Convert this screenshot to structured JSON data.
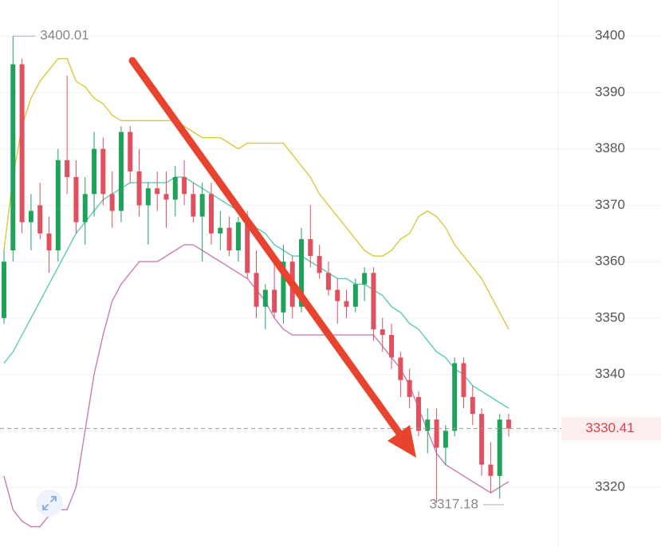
{
  "chart_data": {
    "type": "candlestick",
    "ylim": [
      3309.4,
      3406.4
    ],
    "yticks": [
      3320,
      3330,
      3340,
      3350,
      3360,
      3370,
      3380,
      3390,
      3400
    ],
    "grid": true,
    "up_color": "#1fa35a",
    "down_color": "#e0505e",
    "open": [
      3350,
      3362,
      3395,
      3367,
      3370,
      3365,
      3362,
      3378,
      3375,
      3367,
      3372,
      3380,
      3372,
      3369,
      3383,
      3376,
      3370,
      3373,
      3372,
      3371,
      3375,
      3372,
      3368,
      3372,
      3365,
      3366,
      3362,
      3367,
      3358,
      3352,
      3355,
      3351,
      3360,
      3352,
      3364,
      3361,
      3358,
      3355,
      3353,
      3352,
      3356,
      3358,
      3348,
      3347,
      3343,
      3339,
      3336,
      3330,
      3332,
      3327,
      3330,
      3342,
      3336,
      3333,
      3324,
      3322,
      3332
    ],
    "high": [
      3362,
      3400.01,
      3396,
      3372,
      3374,
      3368,
      3380,
      3393,
      3378,
      3375,
      3383,
      3382,
      3376,
      3384,
      3384,
      3380,
      3374,
      3376,
      3376,
      3377,
      3378,
      3374,
      3374,
      3374,
      3369,
      3368,
      3368,
      3369,
      3362,
      3356,
      3360,
      3363,
      3361,
      3366,
      3370,
      3363,
      3360,
      3357,
      3355,
      3357,
      3359,
      3359,
      3350,
      3349,
      3344,
      3341,
      3337,
      3334,
      3334,
      3331,
      3343,
      3343,
      3338,
      3334,
      3328,
      3333,
      3333
    ],
    "low": [
      3349,
      3360,
      3365,
      3362,
      3364,
      3358,
      3360,
      3372,
      3365,
      3363,
      3368,
      3370,
      3366,
      3367,
      3374,
      3368,
      3363,
      3369,
      3366,
      3368,
      3370,
      3367,
      3360,
      3363,
      3362,
      3361,
      3360,
      3357,
      3350,
      3348,
      3350,
      3349,
      3350,
      3351,
      3359,
      3357,
      3354,
      3349,
      3350,
      3351,
      3353,
      3346,
      3344,
      3341,
      3336,
      3334,
      3329,
      3326,
      3317.18,
      3324,
      3329,
      3334,
      3331,
      3322,
      3319,
      3318,
      3329
    ],
    "close": [
      3360,
      3395,
      3367,
      3369,
      3365,
      3362,
      3378,
      3375,
      3367,
      3372,
      3380,
      3372,
      3369,
      3383,
      3376,
      3370,
      3373,
      3372,
      3371,
      3375,
      3372,
      3368,
      3372,
      3365,
      3366,
      3362,
      3367,
      3358,
      3352,
      3355,
      3351,
      3360,
      3352,
      3364,
      3361,
      3358,
      3355,
      3353,
      3352,
      3356,
      3358,
      3348,
      3347,
      3343,
      3339,
      3336,
      3330,
      3332,
      3327,
      3330,
      3342,
      3336,
      3333,
      3324,
      3322,
      3332,
      3330.41
    ],
    "lines": [
      {
        "color": "#d8c93c",
        "values": [
          3362,
          3375,
          3384,
          3389,
          3392,
          3394,
          3396,
          3396,
          3392,
          3391,
          3389,
          3388,
          3386,
          3385,
          3385,
          3385,
          3385,
          3385,
          3385,
          3385,
          3384,
          3383,
          3382,
          3382,
          3382,
          3381,
          3380,
          3381,
          3381,
          3381,
          3381,
          3381,
          3379,
          3377,
          3375,
          3372,
          3370,
          3368,
          3366,
          3364,
          3362,
          3361,
          3361,
          3362,
          3364,
          3365,
          3368,
          3369,
          3368,
          3366,
          3363,
          3361,
          3359,
          3357,
          3354,
          3351,
          3348
        ]
      },
      {
        "color": "#5ccab6",
        "values": [
          3342,
          3344,
          3347,
          3350,
          3353,
          3356,
          3359,
          3362,
          3365,
          3367,
          3369,
          3371,
          3372,
          3373,
          3374,
          3374,
          3374,
          3374,
          3374,
          3375,
          3375,
          3374,
          3373,
          3372,
          3371,
          3370,
          3369,
          3368,
          3366,
          3365,
          3363,
          3362,
          3361,
          3361,
          3360,
          3359,
          3358,
          3357,
          3357,
          3356,
          3356,
          3355,
          3354,
          3352,
          3351,
          3349,
          3348,
          3346,
          3344,
          3343,
          3341,
          3340,
          3338,
          3337,
          3336,
          3335,
          3334
        ]
      },
      {
        "color": "#c97db3",
        "values": [
          3322,
          3316,
          3314,
          3313,
          3313,
          3315,
          3316,
          3316,
          3320,
          3330,
          3340,
          3347,
          3353,
          3356,
          3358,
          3360,
          3360,
          3360,
          3361,
          3362,
          3363,
          3363,
          3362,
          3361,
          3360,
          3359,
          3358,
          3357,
          3355,
          3353,
          3350,
          3348,
          3347,
          3347,
          3347,
          3347,
          3347,
          3347,
          3347,
          3347,
          3347,
          3347,
          3345,
          3343,
          3341,
          3338,
          3334,
          3330,
          3326,
          3324,
          3323,
          3322,
          3321,
          3320,
          3319,
          3320,
          3321
        ]
      }
    ],
    "high_label": 3400.01,
    "low_label": 3317.18,
    "last_price": 3330.41
  }
}
